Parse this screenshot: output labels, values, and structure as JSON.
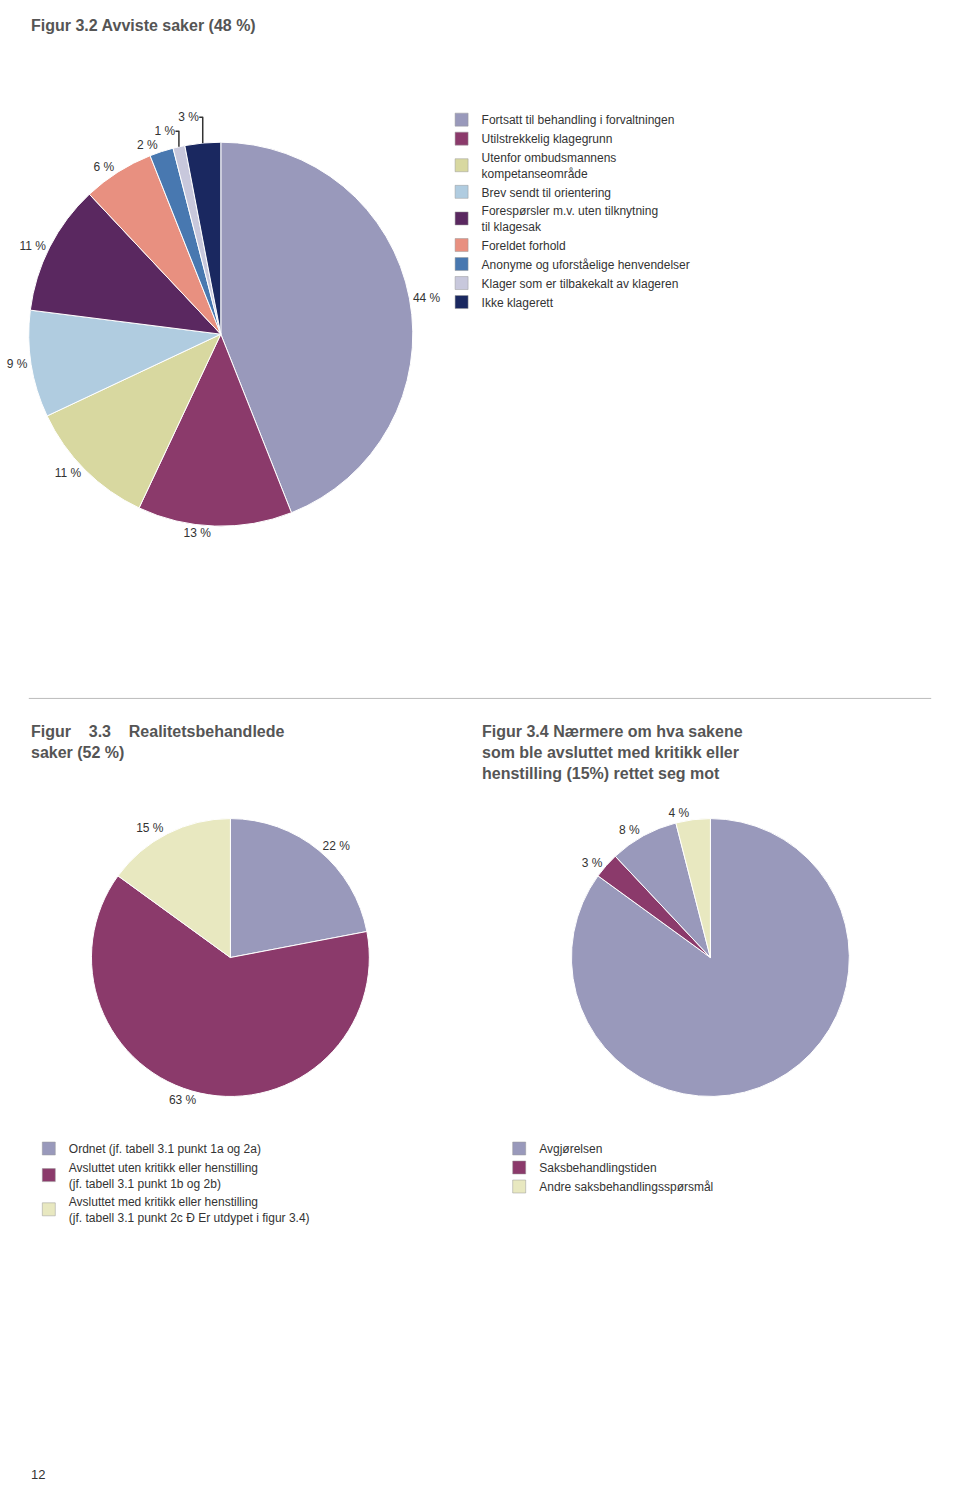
{
  "chart_data": [
    {
      "type": "pie",
      "title": "Figur 3.2 Avviste saker (48 %)",
      "categories": [
        "Fortsatt til behandling i forvaltningen",
        "Utilstrekkelig klagegrunn",
        "Utenfor ombudsmannens\nkompetanseområde",
        "Brev sendt til orientering",
        "Forespørsler m.v. uten tilknytning\ntil klagesak",
        "Foreldet forhold",
        "Anonyme og uforståelige henvendelser",
        "Klager som er tilbakekalt av klageren",
        "Ikke klagerett"
      ],
      "values": [
        44,
        13,
        11,
        9,
        11,
        6,
        2,
        1,
        3
      ],
      "value_labels": [
        "44 %",
        "13 %",
        "11 %",
        "9 %",
        "11 %",
        "6 %",
        "2 %",
        "1 %",
        "3 %"
      ],
      "colors": [
        "#9999bb",
        "#8b3a6b",
        "#d8d8a0",
        "#b0cce0",
        "#5a2860",
        "#e89080",
        "#4878b0",
        "#c8c8dc",
        "#1a2860"
      ],
      "legend": "right"
    },
    {
      "type": "pie",
      "title": "Figur    3.3    Realitetsbehandlede\nsaker (52 %)",
      "categories": [
        "Ordnet (jf. tabell 3.1 punkt 1a og 2a)",
        "Avsluttet uten kritikk eller henstilling\n(jf. tabell 3.1 punkt 1b og 2b)",
        "Avsluttet med kritikk eller henstilling\n(jf. tabell 3.1 punkt 2c Ð Er utdypet i figur 3.4)"
      ],
      "values": [
        22,
        63,
        15
      ],
      "value_labels": [
        "22 %",
        "63 %",
        "15 %"
      ],
      "colors": [
        "#9999bb",
        "#8b3a6b",
        "#e8e8c0"
      ],
      "legend": "bottom"
    },
    {
      "type": "pie",
      "title": "Figur 3.4 Nærmere om hva sakene\nsom ble avsluttet med kritikk eller\nhenstilling (15%) rettet seg mot",
      "categories": [
        "Avgjørelsen",
        "Saksbehandlingstiden",
        "Avgjørelsen",
        "Andre saksbehandlingsspørsmål"
      ],
      "values": [
        85,
        3,
        8,
        4
      ],
      "value_labels": [
        null,
        "3 %",
        "8 %",
        "4 %"
      ],
      "colors": [
        "#9999bb",
        "#8b3a6b",
        "#9999bb",
        "#e8e8c0"
      ],
      "legend": "bottom",
      "annotations": [
        "12"
      ]
    }
  ]
}
